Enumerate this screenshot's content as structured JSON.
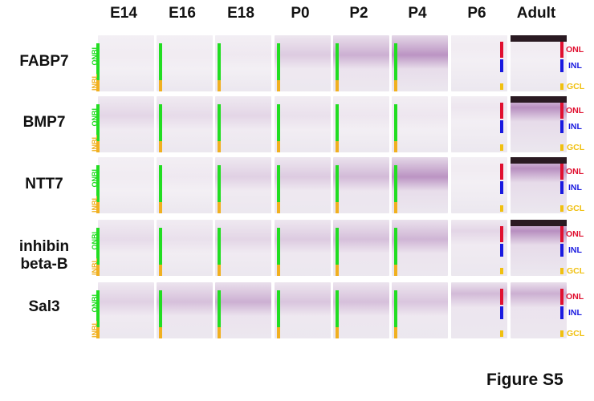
{
  "figure": {
    "label": "Figure S5",
    "columns": [
      "E14",
      "E16",
      "E18",
      "P0",
      "P2",
      "P4",
      "P6",
      "Adult"
    ],
    "rows": [
      {
        "name": "FABP7"
      },
      {
        "name": "BMP7"
      },
      {
        "name": "NTT7"
      },
      {
        "name": "inhibin beta-B",
        "line1": "inhibin",
        "line2": "beta-B"
      },
      {
        "name": "Sal3"
      }
    ],
    "embryonic_layers": {
      "onbl": "ONBL",
      "inbl": "INBL"
    },
    "adult_layers": {
      "onl": "ONL",
      "inl": "INL",
      "gcl": "GCL"
    },
    "colors": {
      "onbl": "#22dd22",
      "inbl": "#f0b020",
      "onl": "#e01030",
      "inl": "#1a1ae0",
      "gcl": "#f0c010",
      "stain": "#7a2a8a"
    }
  }
}
